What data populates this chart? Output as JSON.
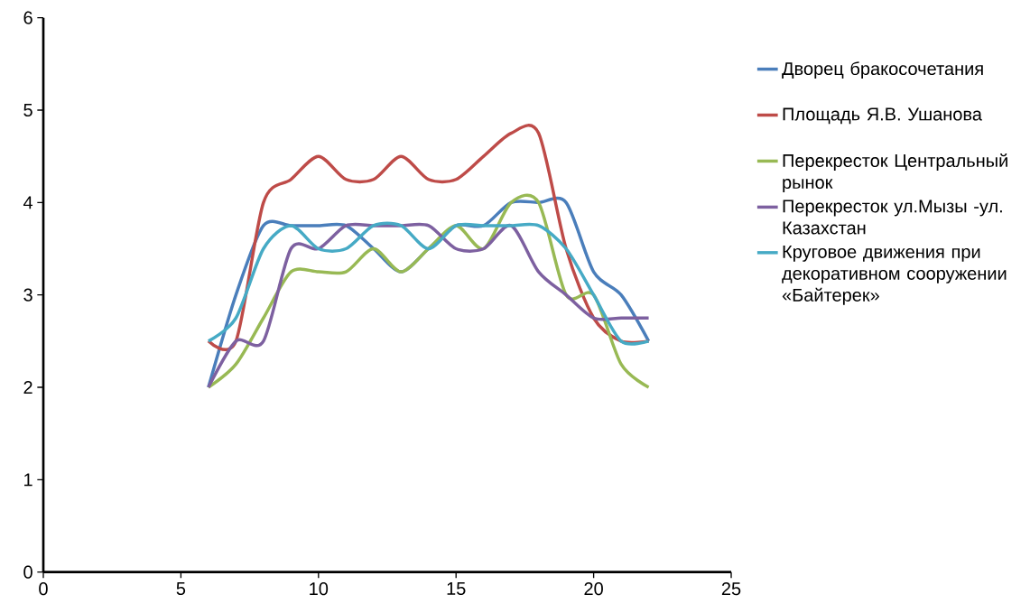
{
  "chart_data": {
    "type": "line",
    "x": [
      6,
      7,
      8,
      9,
      10,
      11,
      12,
      13,
      14,
      15,
      16,
      17,
      18,
      19,
      20,
      21,
      22
    ],
    "series": [
      {
        "name": "Дворец бракосочетания",
        "color": "#4a7ebb",
        "values": [
          2,
          3,
          3.75,
          3.75,
          3.75,
          3.75,
          3.5,
          3.25,
          3.5,
          3.75,
          3.75,
          4,
          4,
          4,
          3.25,
          3,
          2.5
        ]
      },
      {
        "name": "Площадь Я.В. Ушанова",
        "color": "#be4b48",
        "values": [
          2.5,
          2.5,
          4,
          4.25,
          4.5,
          4.25,
          4.25,
          4.5,
          4.25,
          4.25,
          4.5,
          4.75,
          4.75,
          3.5,
          2.75,
          2.5,
          2.5
        ]
      },
      {
        "name": "Перекресток Центральный рынок",
        "color": "#98b954",
        "values": [
          2,
          2.25,
          2.75,
          3.25,
          3.25,
          3.25,
          3.5,
          3.25,
          3.5,
          3.75,
          3.5,
          4,
          4,
          3,
          3,
          2.25,
          2
        ]
      },
      {
        "name": "Перекресток ул.Мызы -ул. Казахстан",
        "color": "#7d60a0",
        "values": [
          2,
          2.5,
          2.5,
          3.5,
          3.5,
          3.75,
          3.75,
          3.75,
          3.75,
          3.5,
          3.5,
          3.75,
          3.25,
          3,
          2.75,
          2.75,
          2.75
        ]
      },
      {
        "name": "Круговое движения при декоративном сооружении «Байтерек»",
        "color": "#46aac5",
        "values": [
          2.5,
          2.75,
          3.5,
          3.75,
          3.5,
          3.5,
          3.75,
          3.75,
          3.5,
          3.75,
          3.75,
          3.75,
          3.75,
          3.5,
          3,
          2.5,
          2.5
        ]
      }
    ],
    "xlim": [
      0,
      25
    ],
    "xticks": [
      0,
      5,
      10,
      15,
      20,
      25
    ],
    "ylim": [
      0,
      6
    ],
    "yticks": [
      0,
      1,
      2,
      3,
      4,
      5,
      6
    ],
    "grid": false,
    "legend": "right",
    "marker": "none",
    "line_style": "solid"
  }
}
